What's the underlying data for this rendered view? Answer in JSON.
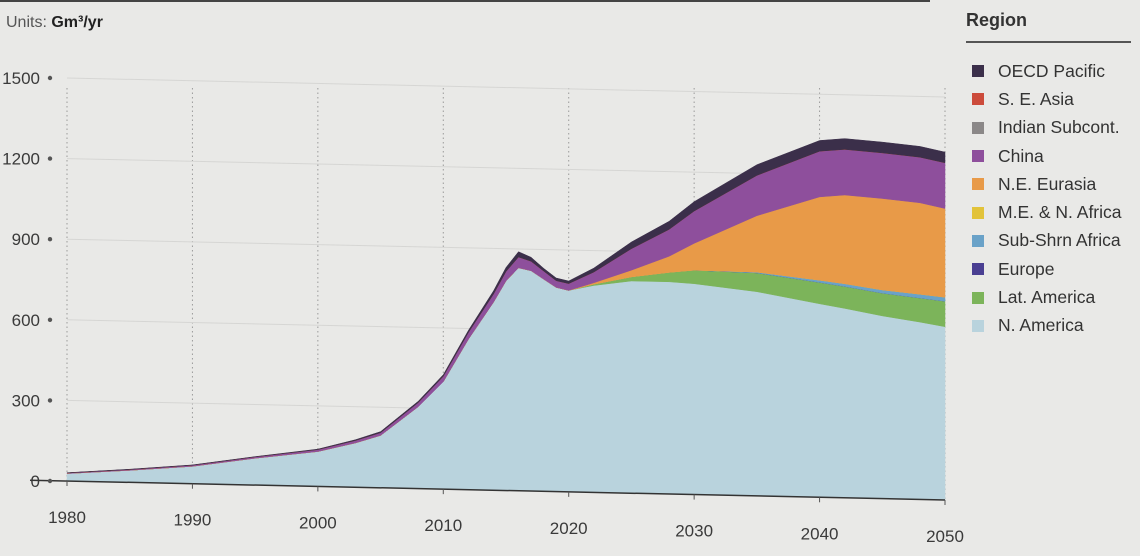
{
  "units_prefix": "Units: ",
  "units_value": "Gm³/yr",
  "legend_title": "Region",
  "chart_data": {
    "type": "area",
    "stacked": true,
    "ylim": [
      0,
      1500
    ],
    "yticks": [
      0,
      300,
      600,
      900,
      1200,
      1500
    ],
    "ytick_labels": [
      "0",
      "300",
      "600",
      "900",
      "1200",
      "1500"
    ],
    "xlim": [
      1980,
      2050
    ],
    "xticks": [
      1980,
      1990,
      2000,
      2010,
      2020,
      2030,
      2040,
      2050
    ],
    "xtick_labels": [
      "1980",
      "1990",
      "2000",
      "2010",
      "2020",
      "2030",
      "2040",
      "2050"
    ],
    "grid": "vertical-dotted",
    "legend_position": "right",
    "x": [
      1980,
      1985,
      1990,
      1995,
      2000,
      2003,
      2005,
      2008,
      2010,
      2012,
      2014,
      2015,
      2016,
      2017,
      2018,
      2019,
      2020,
      2022,
      2025,
      2028,
      2030,
      2035,
      2040,
      2042,
      2045,
      2048,
      2050
    ],
    "series": [
      {
        "name": "N. America",
        "color": "#b9d3dd",
        "values": [
          28,
          45,
          65,
          100,
          130,
          165,
          195,
          305,
          400,
          560,
          700,
          780,
          830,
          820,
          790,
          760,
          750,
          770,
          790,
          790,
          785,
          760,
          720,
          705,
          680,
          660,
          645
        ]
      },
      {
        "name": "Lat. America",
        "color": "#7cb45a",
        "values": [
          0,
          0,
          0,
          0,
          0,
          0,
          0,
          0,
          0,
          0,
          0,
          0,
          0,
          0,
          0,
          0,
          0,
          5,
          15,
          35,
          50,
          70,
          80,
          82,
          85,
          90,
          95
        ]
      },
      {
        "name": "Europe",
        "color": "#4a3f92",
        "values": [
          0,
          0,
          0,
          0,
          0,
          0,
          0,
          0,
          0,
          0,
          0,
          0,
          0,
          0,
          0,
          0,
          0,
          0,
          0,
          0,
          0,
          0,
          0,
          0,
          0,
          0,
          0
        ]
      },
      {
        "name": "Sub-Shrn Africa",
        "color": "#6aa2c8",
        "values": [
          0,
          0,
          0,
          0,
          0,
          0,
          0,
          0,
          0,
          0,
          0,
          0,
          0,
          0,
          0,
          0,
          0,
          0,
          0,
          0,
          0,
          3,
          8,
          10,
          12,
          14,
          15
        ]
      },
      {
        "name": "M.E. & N. Africa",
        "color": "#e2c33a",
        "values": [
          0,
          0,
          0,
          0,
          0,
          0,
          0,
          0,
          0,
          0,
          0,
          0,
          0,
          0,
          0,
          0,
          0,
          0,
          0,
          0,
          0,
          0,
          0,
          0,
          0,
          0,
          0
        ]
      },
      {
        "name": "N.E. Eurasia",
        "color": "#e89a48",
        "values": [
          0,
          0,
          0,
          0,
          0,
          0,
          0,
          0,
          0,
          0,
          0,
          0,
          0,
          0,
          0,
          0,
          0,
          5,
          25,
          60,
          100,
          210,
          310,
          330,
          340,
          340,
          330
        ]
      },
      {
        "name": "China",
        "color": "#8e4f9c",
        "values": [
          2,
          3,
          4,
          5,
          7,
          9,
          10,
          15,
          20,
          25,
          30,
          35,
          40,
          35,
          30,
          25,
          25,
          40,
          80,
          100,
          120,
          150,
          170,
          170,
          170,
          170,
          170
        ]
      },
      {
        "name": "Indian Subcont.",
        "color": "#8b8888",
        "values": [
          0,
          0,
          0,
          0,
          0,
          0,
          0,
          0,
          0,
          0,
          0,
          0,
          0,
          0,
          0,
          0,
          0,
          0,
          0,
          0,
          0,
          0,
          0,
          0,
          0,
          0,
          0
        ]
      },
      {
        "name": "S. E. Asia",
        "color": "#cc4b3b",
        "values": [
          0,
          0,
          0,
          0,
          0,
          0,
          0,
          0,
          0,
          0,
          0,
          0,
          0,
          0,
          0,
          0,
          0,
          0,
          0,
          0,
          0,
          0,
          0,
          0,
          0,
          0,
          0
        ]
      },
      {
        "name": "OECD Pacific",
        "color": "#3b2f4a",
        "values": [
          1,
          1,
          1,
          1,
          2,
          3,
          4,
          5,
          6,
          8,
          12,
          15,
          20,
          15,
          10,
          10,
          10,
          15,
          25,
          30,
          35,
          40,
          40,
          40,
          40,
          40,
          40
        ]
      }
    ]
  }
}
